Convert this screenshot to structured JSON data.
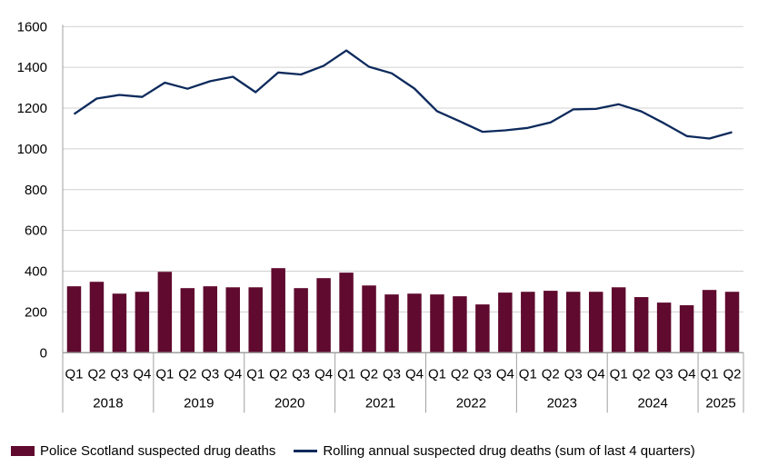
{
  "chart_data": {
    "type": "bar+line",
    "title": "",
    "xlabel": "",
    "ylabel": "",
    "ylim": [
      0,
      1600
    ],
    "yticks": [
      0,
      200,
      400,
      600,
      800,
      1000,
      1200,
      1400,
      1600
    ],
    "grid": true,
    "legend_position": "bottom",
    "years": [
      {
        "label": "2018",
        "quarters": [
          "Q1",
          "Q2",
          "Q3",
          "Q4"
        ]
      },
      {
        "label": "2019",
        "quarters": [
          "Q1",
          "Q2",
          "Q3",
          "Q4"
        ]
      },
      {
        "label": "2020",
        "quarters": [
          "Q1",
          "Q2",
          "Q3",
          "Q4"
        ]
      },
      {
        "label": "2021",
        "quarters": [
          "Q1",
          "Q2",
          "Q3",
          "Q4"
        ]
      },
      {
        "label": "2022",
        "quarters": [
          "Q1",
          "Q2",
          "Q3",
          "Q4"
        ]
      },
      {
        "label": "2023",
        "quarters": [
          "Q1",
          "Q2",
          "Q3",
          "Q4"
        ]
      },
      {
        "label": "2024",
        "quarters": [
          "Q1",
          "Q2",
          "Q3",
          "Q4"
        ]
      },
      {
        "label": "2025",
        "quarters": [
          "Q1",
          "Q2"
        ]
      }
    ],
    "series": [
      {
        "name": "Police Scotland suspected drug deaths",
        "type": "bar",
        "color": "#5f0a2e",
        "values": [
          326,
          348,
          290,
          299,
          397,
          317,
          326,
          321,
          321,
          415,
          317,
          366,
          393,
          330,
          286,
          290,
          286,
          277,
          237,
          295,
          299,
          304,
          299,
          299,
          321,
          273,
          246,
          233,
          308,
          299
        ]
      },
      {
        "name": "Rolling annual suspected drug deaths (sum of last 4 quarters)",
        "type": "line",
        "color": "#0d2a5c",
        "values": [
          1171,
          1247,
          1265,
          1255,
          1325,
          1295,
          1332,
          1354,
          1278,
          1375,
          1365,
          1408,
          1483,
          1403,
          1371,
          1296,
          1185,
          1135,
          1084,
          1091,
          1103,
          1130,
          1194,
          1196,
          1219,
          1184,
          1126,
          1063,
          1051,
          1082
        ]
      }
    ]
  }
}
